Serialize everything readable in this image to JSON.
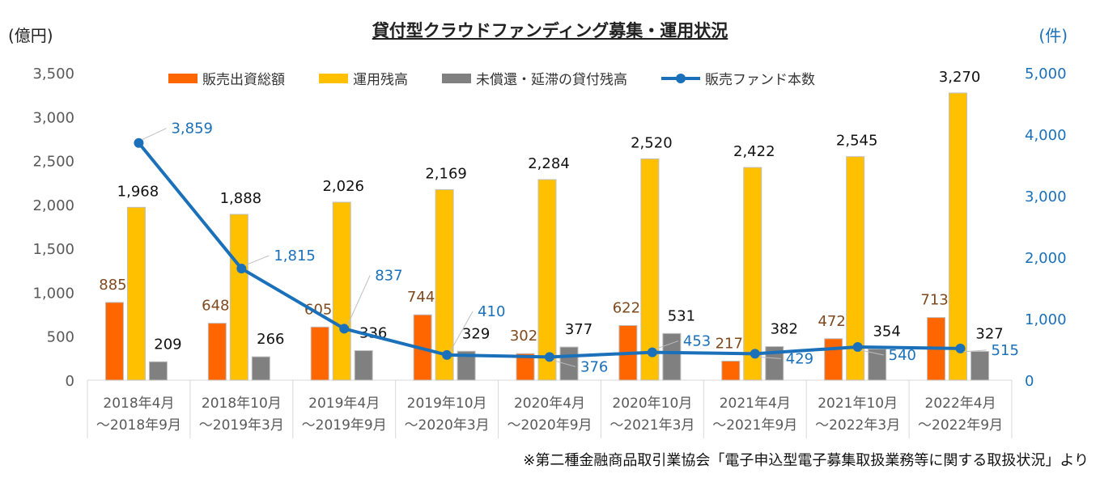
{
  "title": "貸付型クラウドファンディング募集・運用状況",
  "y_left_unit": "(億円)",
  "y_right_unit": "(件)",
  "note": "※第二種金融商品取引業協会「電子申込型電子募集取扱業務等に関する取扱状況」より",
  "colors": {
    "sales": "#ff6600",
    "balance": "#ffc000",
    "delinquent": "#808080",
    "funds_line": "#1a70b9",
    "sales_label": "#7f4a1f",
    "funds_label": "#1a70b9"
  },
  "chart_data": {
    "type": "bar",
    "categories": [
      [
        "2018年4月",
        "～2018年9月"
      ],
      [
        "2018年10月",
        "～2019年3月"
      ],
      [
        "2019年4月",
        "～2019年9月"
      ],
      [
        "2019年10月",
        "～2020年3月"
      ],
      [
        "2020年4月",
        "～2020年9月"
      ],
      [
        "2020年10月",
        "～2021年3月"
      ],
      [
        "2021年4月",
        "～2021年9月"
      ],
      [
        "2021年10月",
        "～2022年3月"
      ],
      [
        "2022年4月",
        "～2022年9月"
      ]
    ],
    "series": [
      {
        "name": "販売出資総額",
        "type": "bar",
        "axis": "left",
        "values": [
          885,
          648,
          605,
          744,
          302,
          622,
          217,
          472,
          713
        ]
      },
      {
        "name": "運用残高",
        "type": "bar",
        "axis": "left",
        "values": [
          1968,
          1888,
          2026,
          2169,
          2284,
          2520,
          2422,
          2545,
          3270
        ]
      },
      {
        "name": "未償還・延滞の貸付残高",
        "type": "bar",
        "axis": "left",
        "values": [
          209,
          266,
          336,
          329,
          377,
          531,
          382,
          354,
          327
        ]
      },
      {
        "name": "販売ファンド本数",
        "type": "line",
        "axis": "right",
        "values": [
          3859,
          1815,
          837,
          410,
          376,
          453,
          429,
          540,
          515
        ]
      }
    ],
    "y_left": {
      "min": 0,
      "max": 3500,
      "ticks": [
        "0",
        "500",
        "1,000",
        "1,500",
        "2,000",
        "2,500",
        "3,000",
        "3,500"
      ]
    },
    "y_right": {
      "min": 0,
      "max": 5000,
      "ticks": [
        "0",
        "1,000",
        "2,000",
        "3,000",
        "4,000",
        "5,000"
      ]
    },
    "grid": false,
    "legend_position": "top"
  }
}
